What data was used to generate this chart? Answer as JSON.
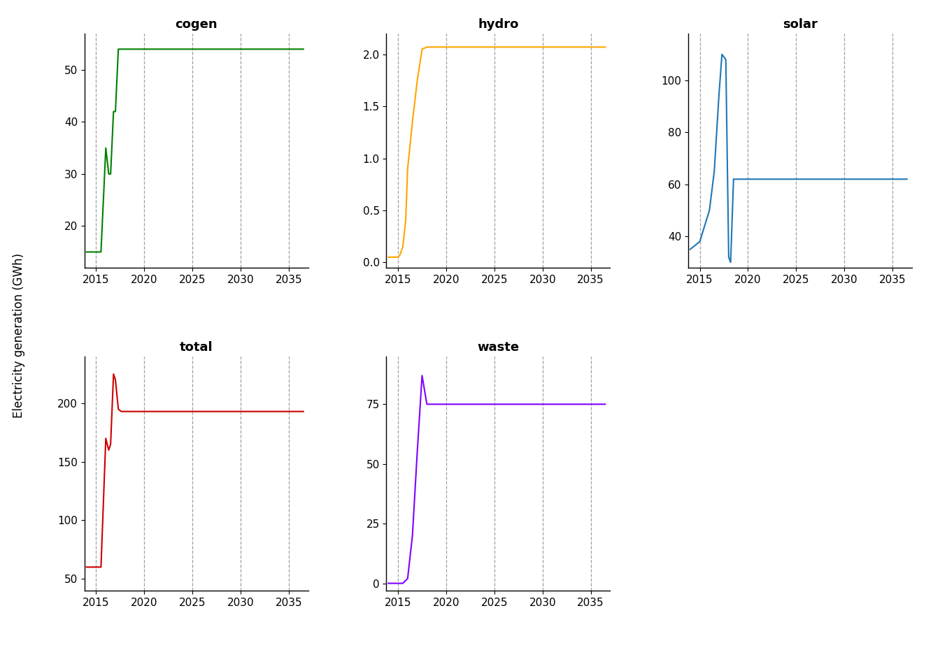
{
  "subplots": [
    {
      "title": "cogen",
      "color": "#008000",
      "x": [
        2014,
        2015,
        2015.5,
        2016,
        2016.3,
        2016.5,
        2016.8,
        2017,
        2017.3,
        2017.6,
        2018,
        2019,
        2020,
        2025,
        2030,
        2036.5
      ],
      "y": [
        15,
        15,
        15,
        35,
        30,
        30,
        42,
        42,
        54,
        54,
        54,
        54,
        54,
        54,
        54,
        54
      ],
      "yticks": [
        20,
        30,
        40,
        50
      ],
      "ylim": [
        12,
        57
      ]
    },
    {
      "title": "hydro",
      "color": "#FFA500",
      "x": [
        2014,
        2015,
        2015.2,
        2015.5,
        2015.8,
        2016,
        2016.5,
        2017,
        2017.5,
        2018,
        2019,
        2025,
        2030,
        2036.5
      ],
      "y": [
        0.05,
        0.05,
        0.07,
        0.15,
        0.4,
        0.9,
        1.35,
        1.75,
        2.05,
        2.07,
        2.07,
        2.07,
        2.07,
        2.07
      ],
      "yticks": [
        0.0,
        0.5,
        1.0,
        1.5,
        2.0
      ],
      "ylim": [
        -0.05,
        2.2
      ]
    },
    {
      "title": "solar",
      "color": "#1f77b4",
      "x": [
        2014,
        2015,
        2016,
        2016.5,
        2017,
        2017.3,
        2017.7,
        2018,
        2018.2,
        2018.5,
        2019,
        2020,
        2025,
        2030,
        2036.5
      ],
      "y": [
        35,
        38,
        50,
        65,
        95,
        110,
        108,
        32,
        30,
        62,
        62,
        62,
        62,
        62,
        62
      ],
      "yticks": [
        40,
        60,
        80,
        100
      ],
      "ylim": [
        28,
        118
      ]
    },
    {
      "title": "total",
      "color": "#CC0000",
      "x": [
        2014,
        2015,
        2015.5,
        2016,
        2016.3,
        2016.5,
        2016.8,
        2017,
        2017.3,
        2017.6,
        2018,
        2018.5,
        2019,
        2025,
        2030,
        2036.5
      ],
      "y": [
        60,
        60,
        60,
        170,
        160,
        165,
        225,
        220,
        195,
        193,
        193,
        193,
        193,
        193,
        193,
        193
      ],
      "yticks": [
        50,
        100,
        150,
        200
      ],
      "ylim": [
        40,
        240
      ]
    },
    {
      "title": "waste",
      "color": "#7F00FF",
      "x": [
        2014,
        2015,
        2015.5,
        2016,
        2016.5,
        2017,
        2017.5,
        2018,
        2018.3,
        2019,
        2025,
        2030,
        2036.5
      ],
      "y": [
        0,
        0,
        0,
        2,
        20,
        55,
        87,
        75,
        75,
        75,
        75,
        75,
        75
      ],
      "yticks": [
        0,
        25,
        50,
        75
      ],
      "ylim": [
        -3,
        95
      ]
    }
  ],
  "ylabel": "Electricity generation (GWh)",
  "dashed_vlines": [
    2015,
    2020,
    2025,
    2030,
    2035
  ],
  "xmin": 2013.8,
  "xmax": 2037,
  "xticks": [
    2015,
    2020,
    2025,
    2030,
    2035
  ],
  "background_color": "#ffffff",
  "title_fontsize": 13,
  "tick_fontsize": 11,
  "ylabel_fontsize": 12
}
